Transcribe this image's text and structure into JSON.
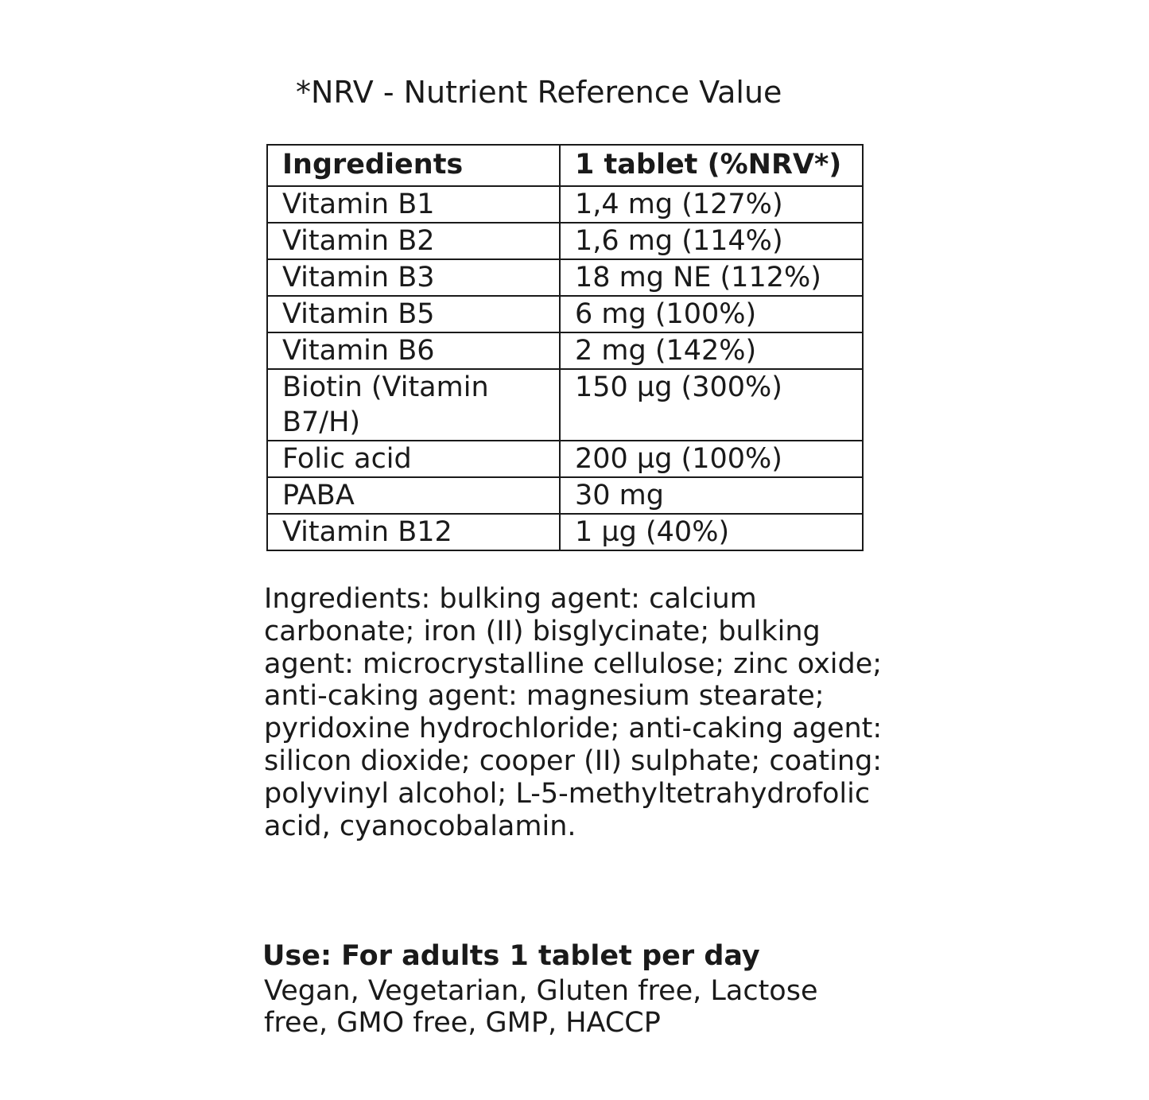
{
  "note": "*NRV - Nutrient Reference Value",
  "table": {
    "headers": [
      "Ingredients",
      "1 tablet (%NRV*)"
    ],
    "rows": [
      [
        "Vitamin B1",
        "1,4 mg (127%)"
      ],
      [
        "Vitamin B2",
        "1,6 mg (114%)"
      ],
      [
        "Vitamin B3",
        "18 mg NE (112%)"
      ],
      [
        "Vitamin B5",
        "6 mg (100%)"
      ],
      [
        "Vitamin B6",
        "2 mg (142%)"
      ],
      [
        "Biotin (Vitamin B7/H)",
        "150 µg (300%)"
      ],
      [
        "Folic acid",
        "200 µg (100%)"
      ],
      [
        "PABA",
        "30 mg"
      ],
      [
        "Vitamin B12",
        "1 µg (40%)"
      ]
    ]
  },
  "ingredients_text": "Ingredients: bulking agent: calcium carbonate; iron (II) bisglycinate; bulking agent: microcrystalline cellulose; zinc oxide; anti-caking agent: magnesium stearate; pyridoxine hydrochloride; anti-caking agent: silicon dioxide; cooper (II) sulphate; coating: polyvinyl alcohol; L-5-methyltetrahydrofolic acid, cyanocobalamin.",
  "use": "Use: For adults 1 tablet per day",
  "claims": "Vegan, Vegetarian, Gluten free, Lactose free, GMO free, GMP, HACCP"
}
